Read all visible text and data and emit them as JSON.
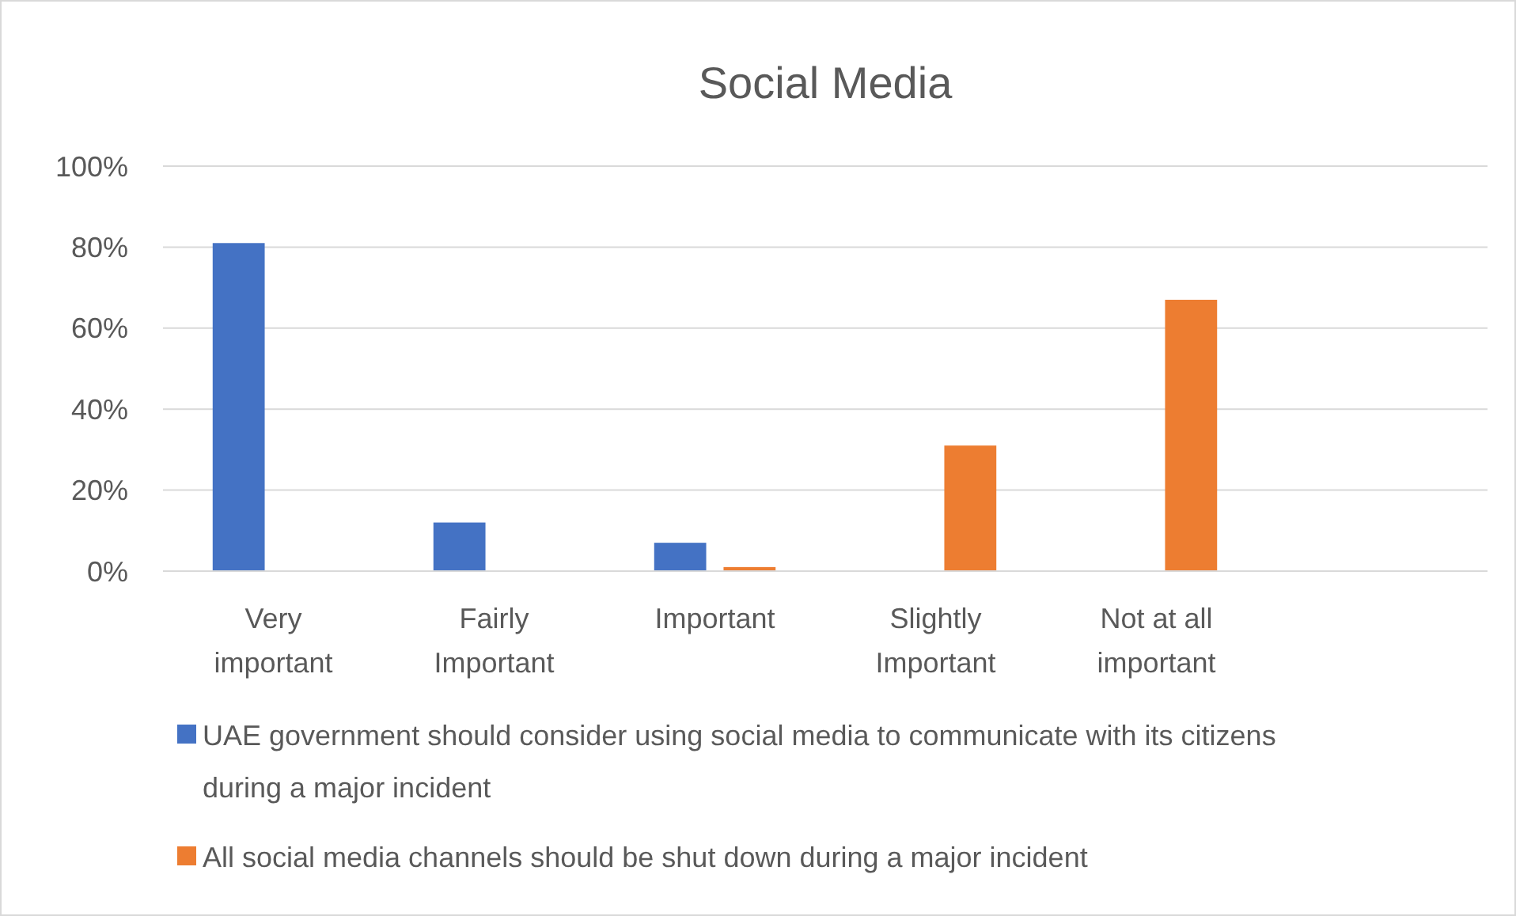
{
  "chart_data": {
    "type": "bar",
    "title": "Social Media",
    "categories": [
      "Very important",
      "Fairly Important",
      "Important",
      "Slightly Important",
      "Not at all important",
      null
    ],
    "series": [
      {
        "name": "UAE government should consider using social media to communicate with its citizens during a major incident",
        "color": "#4472c4",
        "values": [
          81,
          12,
          7,
          0,
          0,
          null
        ]
      },
      {
        "name": "All social media channels should be shut down during a major incident",
        "color": "#ed7d31",
        "values": [
          0,
          0,
          1,
          31,
          67,
          null
        ]
      }
    ],
    "ylim": [
      0,
      100
    ],
    "yticks": [
      {
        "value": 0,
        "label": "0%"
      },
      {
        "value": 20,
        "label": "20%"
      },
      {
        "value": 40,
        "label": "40%"
      },
      {
        "value": 60,
        "label": "60%"
      },
      {
        "value": 80,
        "label": "80%"
      },
      {
        "value": 100,
        "label": "100%"
      }
    ],
    "grid": "y",
    "legend": "bottom"
  }
}
